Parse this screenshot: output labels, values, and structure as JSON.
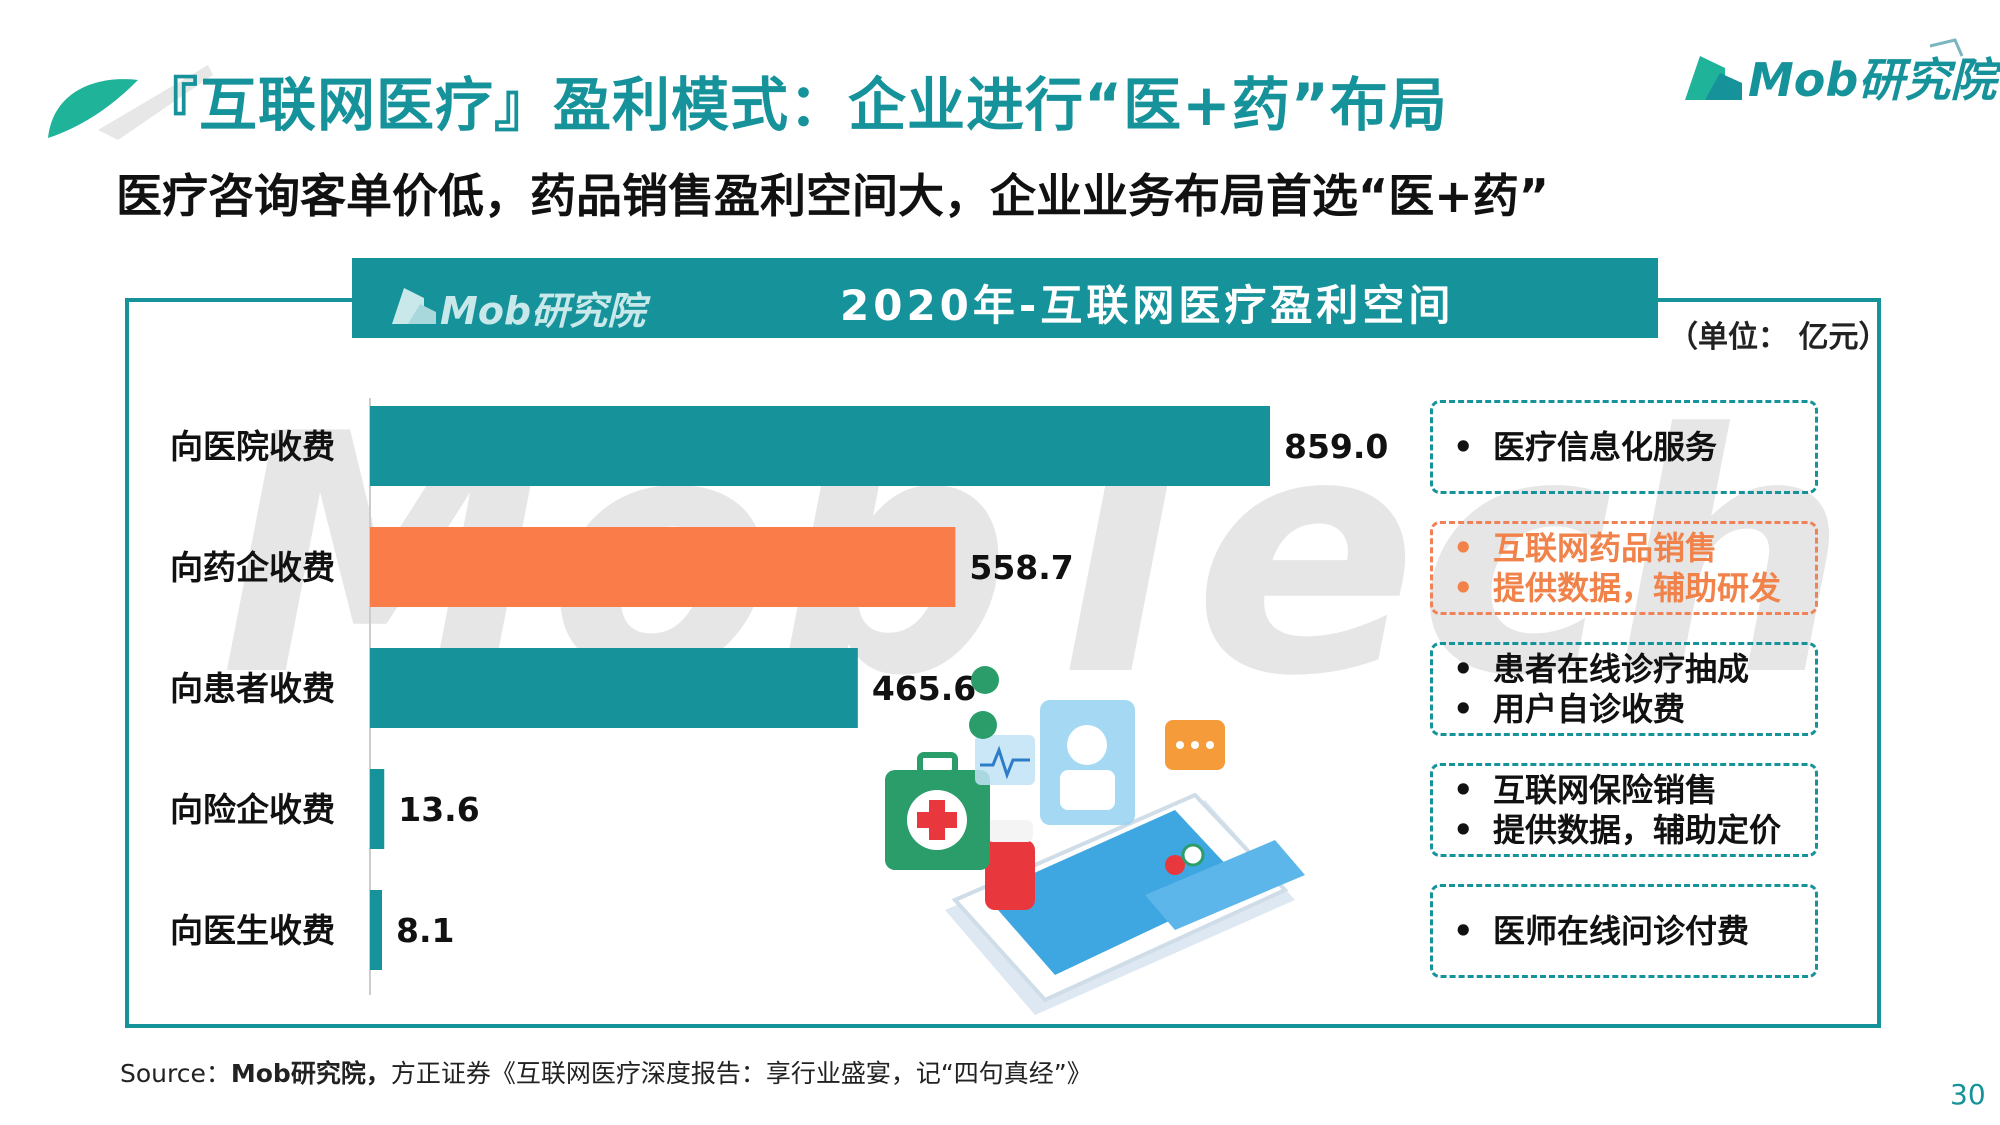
{
  "header": {
    "title": "『互联网医疗』盈利模式：企业进行“医+药”布局",
    "subtitle": "医疗咨询客单价低，药品销售盈利空间大，企业业务布局首选“医+药”",
    "brand": "Mob研究院"
  },
  "chart_header": {
    "logo_text": "Mob研究院",
    "title": "2020年-互联网医疗盈利空间",
    "unit": "（单位： 亿元）"
  },
  "watermark_text": "MobTech",
  "chart_data": {
    "type": "bar",
    "orientation": "horizontal",
    "title": "2020年-互联网医疗盈利空间",
    "unit": "亿元",
    "categories": [
      "向医院收费",
      "向药企收费",
      "向患者收费",
      "向险企收费",
      "向医生收费"
    ],
    "values": [
      859.0,
      558.7,
      465.6,
      13.6,
      8.1
    ],
    "value_labels": [
      "859.0",
      "558.7",
      "465.6",
      "13.6",
      "8.1"
    ],
    "bar_colors": [
      "#16929a",
      "#fa7c48",
      "#16929a",
      "#16929a",
      "#16929a"
    ],
    "xlim": [
      0,
      859.0
    ],
    "grid": false,
    "legend": "none"
  },
  "notes": [
    {
      "lines": [
        "医疗信息化服务"
      ],
      "highlight": false
    },
    {
      "lines": [
        "互联网药品销售",
        "提供数据，辅助研发"
      ],
      "highlight": true
    },
    {
      "lines": [
        "患者在线诊疗抽成",
        "用户自诊收费"
      ],
      "highlight": false
    },
    {
      "lines": [
        "互联网保险销售",
        "提供数据，辅助定价"
      ],
      "highlight": false
    },
    {
      "lines": [
        "医师在线问诊付费"
      ],
      "highlight": false
    }
  ],
  "bullet": "•",
  "footer": {
    "source_prefix": "Source：",
    "source_bold": "Mob研究院，",
    "source_rest": "方正证券《互联网医疗深度报告：享行业盛宴，记“四句真经”》",
    "page_number": "30"
  },
  "colors": {
    "teal": "#16929a",
    "orange": "#fa7c48",
    "highlight_text": "#f0824a"
  },
  "icons": [
    "leaf-logo-icon",
    "mob-logo-icon",
    "medical-kit-icon",
    "phone-medical-illustration"
  ]
}
